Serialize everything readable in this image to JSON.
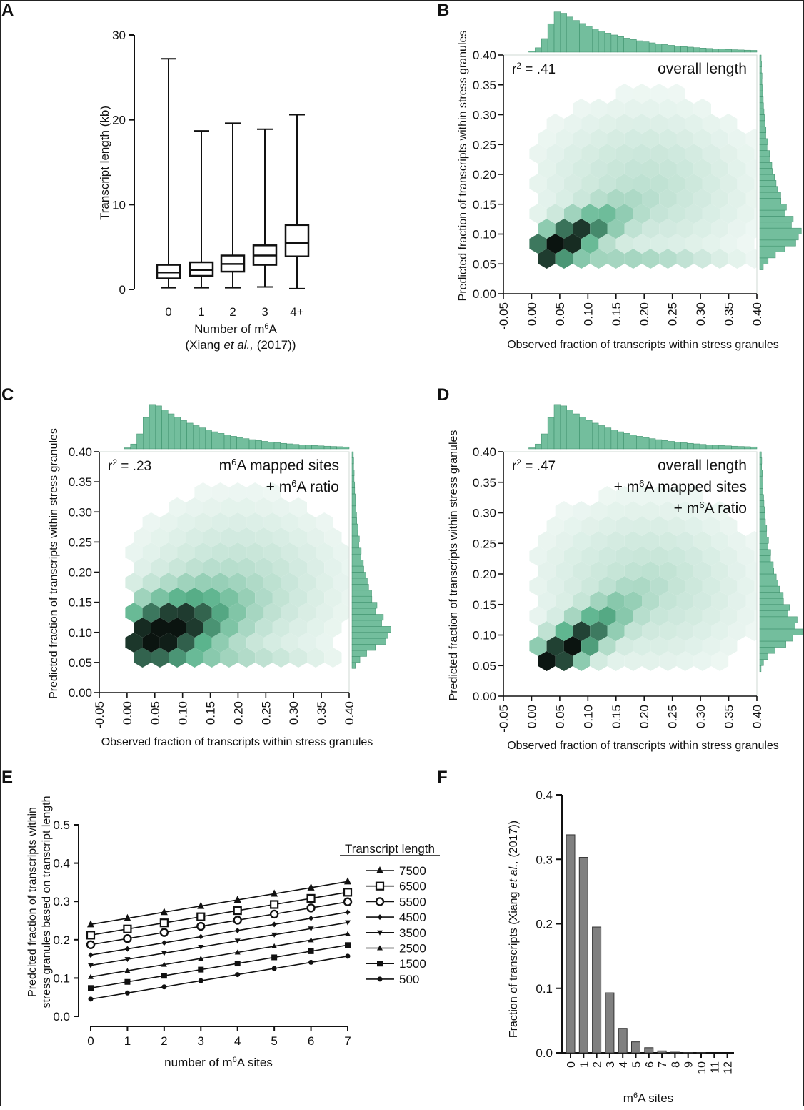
{
  "figure": {
    "panel_letters": [
      "A",
      "B",
      "C",
      "D",
      "E",
      "F"
    ],
    "colors": {
      "ink": "#111111",
      "green": "#5ab38c",
      "green_edge": "#3d8f6b",
      "dark": "#0b1410",
      "grey_bar": "#808080"
    }
  },
  "chart_data": [
    {
      "panel": "A",
      "type": "boxplot",
      "ylabel": "Transcript length (kb)",
      "xlabel_line1": "Number of m",
      "xlabel_sup": "6",
      "xlabel_tail": "A",
      "xlabel_line2_pre": "(Xiang ",
      "xlabel_line2_ital": "et al.,",
      "xlabel_line2_post": " (2017))",
      "categories": [
        "0",
        "1",
        "2",
        "3",
        "4+"
      ],
      "yticks": [
        "0",
        "10",
        "20",
        "30"
      ],
      "ylim": [
        0,
        30
      ],
      "boxes": [
        {
          "min": 0.2,
          "q1": 1.3,
          "median": 2.0,
          "q3": 2.9,
          "max": 27.2
        },
        {
          "min": 0.2,
          "q1": 1.6,
          "median": 2.3,
          "q3": 3.2,
          "max": 18.7
        },
        {
          "min": 0.2,
          "q1": 2.1,
          "median": 3.0,
          "q3": 4.0,
          "max": 19.6
        },
        {
          "min": 0.3,
          "q1": 2.9,
          "median": 4.0,
          "q3": 5.2,
          "max": 18.9
        },
        {
          "min": 0.1,
          "q1": 3.9,
          "median": 5.5,
          "q3": 7.6,
          "max": 20.6
        }
      ]
    },
    {
      "panel": "B",
      "type": "hexbin",
      "r2_label": "r",
      "r2_sup": "2",
      "r2_value": " = .41",
      "annotation": [
        "overall length"
      ],
      "xlabel": "Observed fraction of transcripts within stress granules",
      "ylabel": "Predicted fraction of transcripts within stress granules",
      "xticks": [
        "-0.05",
        "0.00",
        "0.05",
        "0.10",
        "0.15",
        "0.20",
        "0.25",
        "0.30",
        "0.35",
        "0.40"
      ],
      "yticks": [
        "0.00",
        "0.05",
        "0.10",
        "0.15",
        "0.20",
        "0.25",
        "0.30",
        "0.35",
        "0.40"
      ],
      "xlim": [
        -0.05,
        0.4
      ],
      "ylim": [
        0.0,
        0.4
      ],
      "density": {
        "center": [
          0.05,
          0.085
        ],
        "spread_x": 0.065,
        "spread_y": 0.035,
        "correlation": 0.75,
        "peak_count": 1.0,
        "band_y": 0.055
      },
      "top_hist_peak": 0.05,
      "right_hist_peak": 0.1
    },
    {
      "panel": "C",
      "type": "hexbin",
      "r2_label": "r",
      "r2_sup": "2",
      "r2_value": " = .23",
      "annotation": [
        "m6A mapped sites",
        "+ m6A ratio"
      ],
      "annotation_rich": [
        {
          "pre": "m",
          "sup": "6",
          "post": "A mapped sites"
        },
        {
          "pre": "+ m",
          "sup": "6",
          "post": "A ratio"
        }
      ],
      "xlabel": "Observed fraction of transcripts within stress granules",
      "ylabel": "Predicted fraction of transcripts within stress granules",
      "xticks": [
        "-0.05",
        "0.00",
        "0.05",
        "0.10",
        "0.15",
        "0.20",
        "0.25",
        "0.30",
        "0.35",
        "0.40"
      ],
      "yticks": [
        "0.00",
        "0.05",
        "0.10",
        "0.15",
        "0.20",
        "0.25",
        "0.30",
        "0.35",
        "0.40"
      ],
      "xlim": [
        -0.05,
        0.4
      ],
      "ylim": [
        0.0,
        0.4
      ],
      "density": {
        "center": [
          0.06,
          0.1
        ],
        "spread_x": 0.085,
        "spread_y": 0.045,
        "correlation": 0.45,
        "peak_count": 1.0,
        "band_y": 0.065
      },
      "top_hist_peak": 0.05,
      "right_hist_peak": 0.1
    },
    {
      "panel": "D",
      "type": "hexbin",
      "r2_label": "r",
      "r2_sup": "2",
      "r2_value": " = .47",
      "annotation": [
        "overall length",
        "+ m6A mapped sites",
        "+ m6A ratio"
      ],
      "annotation_rich": [
        {
          "pre": "overall length",
          "sup": "",
          "post": ""
        },
        {
          "pre": "+ m",
          "sup": "6",
          "post": "A mapped sites"
        },
        {
          "pre": "+ m",
          "sup": "6",
          "post": "A ratio"
        }
      ],
      "xlabel": "Observed fraction of transcripts within stress granules",
      "ylabel": "Predicted fraction of transcripts within stress granules",
      "xticks": [
        "-0.05",
        "0.00",
        "0.05",
        "0.10",
        "0.15",
        "0.20",
        "0.25",
        "0.30",
        "0.35",
        "0.40"
      ],
      "yticks": [
        "0.00",
        "0.05",
        "0.10",
        "0.15",
        "0.20",
        "0.25",
        "0.30",
        "0.35",
        "0.40"
      ],
      "xlim": [
        -0.05,
        0.4
      ],
      "ylim": [
        0.0,
        0.4
      ],
      "density": {
        "center": [
          0.05,
          0.07
        ],
        "spread_x": 0.07,
        "spread_y": 0.05,
        "correlation": 0.85,
        "peak_count": 1.0,
        "band_y": 0.0
      },
      "top_hist_peak": 0.05,
      "right_hist_peak": 0.11
    },
    {
      "panel": "E",
      "type": "line",
      "xlabel_pre": "number of m",
      "xlabel_sup": "6",
      "xlabel_post": "A sites",
      "ylabel_line1": "Predcited fraction of transcripts within",
      "ylabel_line2": "stress granules based on transcript length",
      "legend_title": "Transcript length",
      "x": [
        0,
        1,
        2,
        3,
        4,
        5,
        6,
        7
      ],
      "xticks": [
        "0",
        "1",
        "2",
        "3",
        "4",
        "5",
        "6",
        "7"
      ],
      "yticks": [
        "0.0",
        "0.1",
        "0.2",
        "0.3",
        "0.4",
        "0.5"
      ],
      "ylim": [
        0.0,
        0.5
      ],
      "series": [
        {
          "name": "7500",
          "marker": "triangle-up",
          "start": 0.24,
          "slope": 0.016
        },
        {
          "name": "6500",
          "marker": "square-open",
          "start": 0.212,
          "slope": 0.016
        },
        {
          "name": "5500",
          "marker": "circle-open",
          "start": 0.187,
          "slope": 0.016
        },
        {
          "name": "4500",
          "marker": "diamond",
          "start": 0.16,
          "slope": 0.016
        },
        {
          "name": "3500",
          "marker": "triangle-down",
          "start": 0.133,
          "slope": 0.016
        },
        {
          "name": "2500",
          "marker": "triangle-up-small",
          "start": 0.103,
          "slope": 0.016
        },
        {
          "name": "1500",
          "marker": "square",
          "start": 0.074,
          "slope": 0.016
        },
        {
          "name": "500",
          "marker": "circle",
          "start": 0.045,
          "slope": 0.016
        }
      ]
    },
    {
      "panel": "F",
      "type": "bar",
      "ylabel_pre": "Fraction of transcripts (Xiang ",
      "ylabel_ital": "et al.,",
      "ylabel_post": " (2017))",
      "xlabel_pre": "m",
      "xlabel_sup": "6",
      "xlabel_post": "A sites",
      "categories": [
        "0",
        "1",
        "2",
        "3",
        "4",
        "5",
        "6",
        "7",
        "8",
        "9",
        "10",
        "11",
        "12"
      ],
      "values": [
        0.338,
        0.303,
        0.195,
        0.093,
        0.038,
        0.017,
        0.008,
        0.003,
        0.001,
        0.0005,
        0.0003,
        0.0002,
        0.0001
      ],
      "yticks": [
        "0.0",
        "0.1",
        "0.2",
        "0.3",
        "0.4"
      ],
      "ylim": [
        0.0,
        0.4
      ]
    }
  ]
}
